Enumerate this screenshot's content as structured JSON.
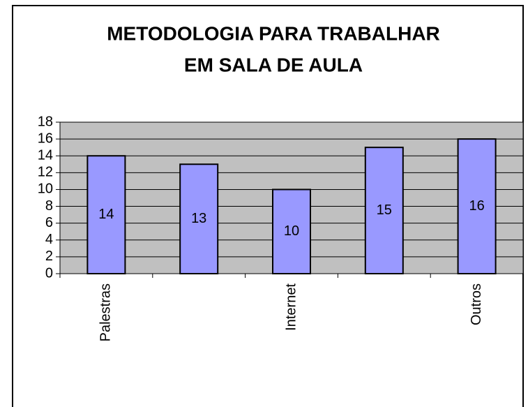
{
  "chart_data": {
    "type": "bar",
    "title": [
      "METODOLOGIA PARA TRABALHAR",
      "EM SALA DE AULA"
    ],
    "categories": [
      "Palestras",
      null,
      "Internet",
      null,
      "Outros"
    ],
    "values": [
      14,
      13,
      10,
      15,
      16
    ],
    "color": "#9999ff",
    "plot_background": "#c0c0c0",
    "ylim": [
      0,
      18
    ],
    "yticks": [
      0,
      2,
      4,
      6,
      8,
      10,
      12,
      14,
      16,
      18
    ],
    "grid": true
  }
}
